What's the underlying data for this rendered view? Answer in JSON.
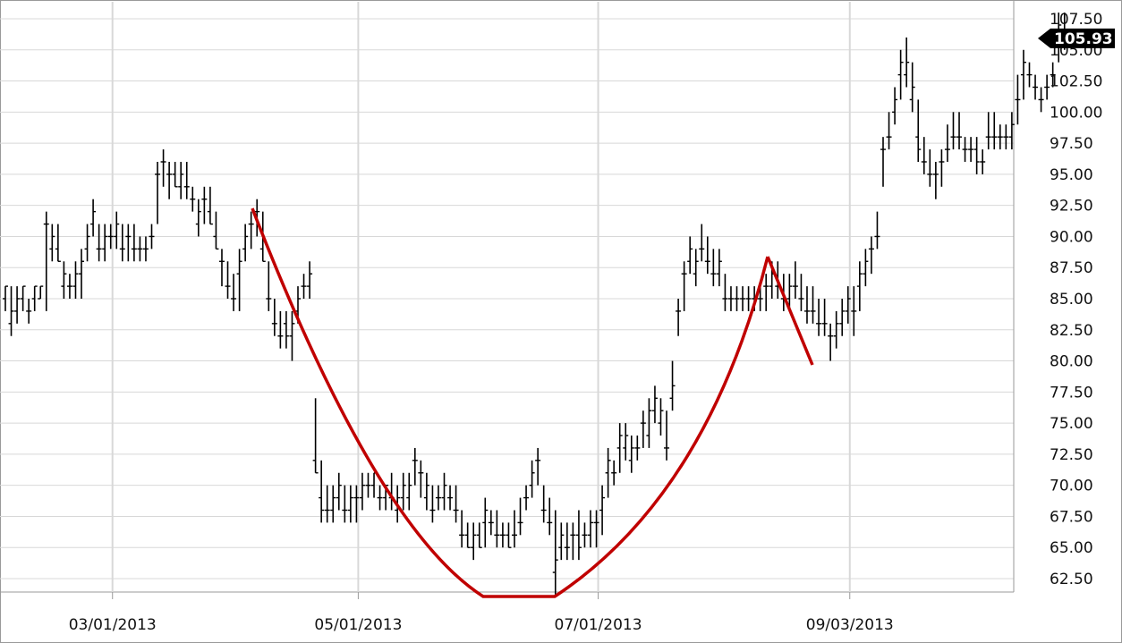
{
  "chart_data": {
    "type": "ohlc",
    "title": "",
    "xlabel": "",
    "ylabel": "",
    "ylim": [
      60.5,
      108.5
    ],
    "y_ticks": [
      "62.50",
      "65.00",
      "67.50",
      "70.00",
      "72.50",
      "75.00",
      "77.50",
      "80.00",
      "82.50",
      "85.00",
      "87.50",
      "90.00",
      "92.50",
      "95.00",
      "97.50",
      "100.00",
      "102.50",
      "105.00",
      "107.50"
    ],
    "x_tick_labels": [
      {
        "label": "03/01/2013",
        "bar": 18
      },
      {
        "label": "05/01/2013",
        "bar": 60
      },
      {
        "label": "07/01/2013",
        "bar": 101
      },
      {
        "label": "09/03/2013",
        "bar": 144
      }
    ],
    "grid": true,
    "last_price": "105.93",
    "series": [
      {
        "type": "ohlc",
        "bars": [
          [
            86,
            84,
            85,
            86
          ],
          [
            86,
            82,
            83,
            84
          ],
          [
            86,
            83,
            84,
            85
          ],
          [
            86,
            84,
            85,
            86
          ],
          [
            85,
            83,
            84,
            84
          ],
          [
            86,
            84,
            85,
            86
          ],
          [
            86,
            85,
            85,
            86
          ],
          [
            92,
            84,
            91,
            91
          ],
          [
            91,
            88,
            89,
            90
          ],
          [
            91,
            88,
            89,
            88
          ],
          [
            88,
            85,
            86,
            87
          ],
          [
            87,
            85,
            86,
            86
          ],
          [
            88,
            85,
            86,
            87
          ],
          [
            89,
            85,
            87,
            88
          ],
          [
            91,
            88,
            89,
            90
          ],
          [
            93,
            90,
            91,
            92
          ],
          [
            91,
            88,
            89,
            89
          ],
          [
            91,
            88,
            89,
            90
          ],
          [
            91,
            89,
            90,
            90
          ],
          [
            92,
            89,
            90,
            91
          ],
          [
            91,
            88,
            89,
            89
          ],
          [
            91,
            88,
            90,
            90
          ],
          [
            91,
            88,
            89,
            89
          ],
          [
            90,
            88,
            89,
            89
          ],
          [
            90,
            88,
            89,
            89
          ],
          [
            91,
            89,
            90,
            90
          ],
          [
            96,
            91,
            95,
            95
          ],
          [
            97,
            94,
            96,
            96
          ],
          [
            96,
            93,
            95,
            95
          ],
          [
            96,
            94,
            95,
            94
          ],
          [
            96,
            93,
            94,
            95
          ],
          [
            96,
            93,
            94,
            94
          ],
          [
            94,
            92,
            93,
            93
          ],
          [
            93,
            90,
            91,
            92
          ],
          [
            94,
            91,
            93,
            93
          ],
          [
            94,
            91,
            92,
            91
          ],
          [
            92,
            89,
            90,
            89
          ],
          [
            89,
            86,
            88,
            88
          ],
          [
            88,
            85,
            86,
            86
          ],
          [
            87,
            84,
            85,
            85
          ],
          [
            89,
            84,
            87,
            88
          ],
          [
            91,
            88,
            89,
            90
          ],
          [
            92,
            89,
            91,
            91
          ],
          [
            93,
            90,
            92,
            92
          ],
          [
            92,
            88,
            89,
            88
          ],
          [
            88,
            84,
            85,
            85
          ],
          [
            85,
            82,
            83,
            83
          ],
          [
            84,
            81,
            82,
            82
          ],
          [
            84,
            81,
            83,
            82
          ],
          [
            84,
            80,
            82,
            83
          ],
          [
            86,
            83,
            84,
            85
          ],
          [
            87,
            85,
            86,
            86
          ],
          [
            88,
            85,
            86,
            87
          ],
          [
            77,
            71,
            72,
            71
          ],
          [
            72,
            67,
            69,
            68
          ],
          [
            70,
            67,
            68,
            68
          ],
          [
            70,
            67,
            68,
            69
          ],
          [
            71,
            68,
            69,
            70
          ],
          [
            70,
            67,
            68,
            68
          ],
          [
            70,
            67,
            68,
            69
          ],
          [
            70,
            67,
            69,
            69
          ],
          [
            71,
            68,
            69,
            70
          ],
          [
            71,
            69,
            70,
            70
          ],
          [
            71,
            69,
            70,
            71
          ],
          [
            70,
            68,
            69,
            69
          ],
          [
            70,
            68,
            69,
            70
          ],
          [
            71,
            68,
            69,
            69
          ],
          [
            70,
            67,
            68,
            69
          ],
          [
            71,
            68,
            69,
            70
          ],
          [
            71,
            68,
            69,
            70
          ],
          [
            73,
            70,
            72,
            72
          ],
          [
            72,
            69,
            71,
            71
          ],
          [
            71,
            68,
            69,
            70
          ],
          [
            70,
            67,
            68,
            68
          ],
          [
            70,
            68,
            69,
            69
          ],
          [
            71,
            68,
            69,
            70
          ],
          [
            70,
            68,
            69,
            69
          ],
          [
            70,
            67,
            68,
            68
          ],
          [
            68,
            65,
            66,
            66
          ],
          [
            67,
            65,
            66,
            65
          ],
          [
            67,
            64,
            65,
            66
          ],
          [
            67,
            65,
            66,
            65
          ],
          [
            69,
            65,
            67,
            68
          ],
          [
            68,
            66,
            67,
            67
          ],
          [
            68,
            65,
            66,
            66
          ],
          [
            67,
            65,
            66,
            66
          ],
          [
            67,
            65,
            66,
            65
          ],
          [
            68,
            65,
            66,
            66
          ],
          [
            69,
            66,
            67,
            67
          ],
          [
            70,
            68,
            69,
            69
          ],
          [
            72,
            69,
            70,
            71
          ],
          [
            73,
            70,
            72,
            72
          ],
          [
            70,
            67,
            68,
            68
          ],
          [
            69,
            66,
            67,
            67
          ],
          [
            68,
            61,
            63,
            64
          ],
          [
            67,
            64,
            65,
            66
          ],
          [
            67,
            64,
            65,
            65
          ],
          [
            67,
            64,
            66,
            66
          ],
          [
            68,
            64,
            66,
            65
          ],
          [
            67,
            65,
            66,
            66
          ],
          [
            68,
            65,
            66,
            67
          ],
          [
            68,
            65,
            67,
            67
          ],
          [
            70,
            66,
            68,
            69
          ],
          [
            73,
            69,
            71,
            72
          ],
          [
            72,
            70,
            71,
            71
          ],
          [
            75,
            71,
            73,
            74
          ],
          [
            75,
            72,
            73,
            74
          ],
          [
            74,
            71,
            72,
            73
          ],
          [
            74,
            72,
            73,
            73
          ],
          [
            76,
            73,
            75,
            75
          ],
          [
            77,
            73,
            74,
            76
          ],
          [
            78,
            75,
            76,
            77
          ],
          [
            77,
            74,
            75,
            76
          ],
          [
            76,
            72,
            73,
            73
          ],
          [
            80,
            76,
            77,
            78
          ],
          [
            85,
            82,
            84,
            84
          ],
          [
            88,
            84,
            87,
            87
          ],
          [
            90,
            87,
            88,
            89
          ],
          [
            89,
            86,
            87,
            88
          ],
          [
            91,
            88,
            89,
            89
          ],
          [
            90,
            87,
            88,
            88
          ],
          [
            89,
            86,
            87,
            87
          ],
          [
            89,
            86,
            87,
            88
          ],
          [
            87,
            84,
            85,
            85
          ],
          [
            86,
            84,
            85,
            85
          ],
          [
            86,
            84,
            85,
            85
          ],
          [
            86,
            84,
            85,
            85
          ],
          [
            86,
            84,
            85,
            85
          ],
          [
            86,
            84,
            85,
            85
          ],
          [
            86,
            84,
            85,
            85
          ],
          [
            87,
            84,
            86,
            86
          ],
          [
            88,
            85,
            86,
            87
          ],
          [
            88,
            85,
            86,
            86
          ],
          [
            87,
            84,
            85,
            85
          ],
          [
            87,
            84,
            85,
            86
          ],
          [
            88,
            85,
            86,
            86
          ],
          [
            87,
            84,
            85,
            85
          ],
          [
            86,
            83,
            84,
            84
          ],
          [
            86,
            83,
            84,
            84
          ],
          [
            85,
            82,
            83,
            83
          ],
          [
            85,
            82,
            83,
            83
          ],
          [
            83,
            80,
            82,
            82
          ],
          [
            84,
            81,
            82,
            83
          ],
          [
            85,
            82,
            83,
            84
          ],
          [
            86,
            83,
            84,
            85
          ],
          [
            86,
            82,
            84,
            84
          ],
          [
            88,
            84,
            86,
            87
          ],
          [
            89,
            86,
            87,
            88
          ],
          [
            90,
            87,
            89,
            89
          ],
          [
            92,
            89,
            90,
            90
          ],
          [
            98,
            94,
            97,
            97
          ],
          [
            100,
            97,
            98,
            98
          ],
          [
            102,
            99,
            100,
            101
          ],
          [
            105,
            101,
            103,
            104
          ],
          [
            106,
            102,
            103,
            104
          ],
          [
            104,
            100,
            101,
            102
          ],
          [
            101,
            96,
            98,
            97
          ],
          [
            98,
            95,
            96,
            96
          ],
          [
            97,
            94,
            95,
            95
          ],
          [
            96,
            93,
            95,
            95
          ],
          [
            97,
            94,
            96,
            96
          ],
          [
            99,
            96,
            97,
            97
          ],
          [
            100,
            97,
            98,
            98
          ],
          [
            100,
            97,
            98,
            98
          ],
          [
            98,
            96,
            97,
            97
          ],
          [
            98,
            96,
            97,
            97
          ],
          [
            98,
            95,
            97,
            96
          ],
          [
            97,
            95,
            96,
            96
          ],
          [
            100,
            97,
            98,
            98
          ],
          [
            100,
            97,
            98,
            98
          ],
          [
            99,
            97,
            98,
            98
          ],
          [
            99,
            97,
            98,
            98
          ],
          [
            100,
            97,
            98,
            99
          ],
          [
            103,
            99,
            101,
            101
          ],
          [
            105,
            101,
            103,
            104
          ],
          [
            104,
            102,
            103,
            103
          ],
          [
            103,
            101,
            102,
            102
          ],
          [
            102,
            100,
            101,
            101
          ],
          [
            103,
            101,
            102,
            102
          ],
          [
            104,
            102,
            103,
            103
          ],
          [
            108,
            104,
            106,
            107
          ],
          [
            108,
            105,
            106,
            106
          ]
        ]
      }
    ],
    "annotations": [
      {
        "type": "cup-curve",
        "color": "#c00000"
      },
      {
        "type": "handle-line",
        "color": "#c00000"
      }
    ],
    "colors": {
      "bars": "#000000",
      "grid": "#d8d8d8",
      "overlay": "#c00000",
      "price_tag_bg": "#000000"
    }
  }
}
